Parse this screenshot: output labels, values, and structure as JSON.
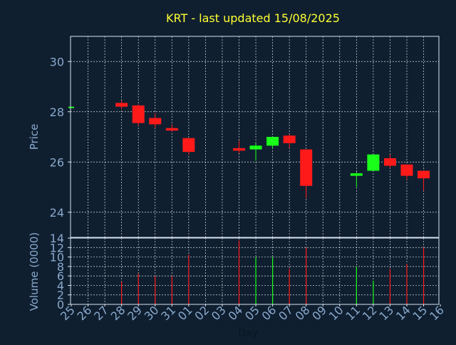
{
  "chart_data": {
    "type": "candlestick",
    "title": "KRT - last updated 15/08/2025",
    "xlabel": "Day",
    "ylabel_price": "Price",
    "ylabel_volume": "Volume (0000)",
    "categories": [
      "25",
      "26",
      "27",
      "28",
      "29",
      "30",
      "31",
      "01",
      "02",
      "03",
      "04",
      "05",
      "06",
      "07",
      "08",
      "09",
      "10",
      "11",
      "12",
      "13",
      "14",
      "15",
      "16"
    ],
    "price_ylim": [
      23.0,
      31.0
    ],
    "price_ticks": [
      24,
      26,
      28,
      30
    ],
    "volume_ylim": [
      0,
      14
    ],
    "volume_ticks": [
      0,
      2,
      4,
      6,
      8,
      10,
      12,
      14
    ],
    "grid": true,
    "candles": [
      {
        "x": "25",
        "open": 28.18,
        "high": 28.2,
        "low": 28.18,
        "close": 28.2
      },
      {
        "x": "28",
        "open": 28.35,
        "high": 28.45,
        "low": 28.1,
        "close": 28.2
      },
      {
        "x": "29",
        "open": 28.25,
        "high": 28.3,
        "low": 27.45,
        "close": 27.55
      },
      {
        "x": "30",
        "open": 27.75,
        "high": 27.95,
        "low": 27.35,
        "close": 27.5
      },
      {
        "x": "31",
        "open": 27.35,
        "high": 27.5,
        "low": 27.2,
        "close": 27.25
      },
      {
        "x": "01",
        "open": 26.95,
        "high": 26.95,
        "low": 26.3,
        "close": 26.4
      },
      {
        "x": "04",
        "open": 26.55,
        "high": 26.85,
        "low": 26.35,
        "close": 26.45
      },
      {
        "x": "05",
        "open": 26.5,
        "high": 26.75,
        "low": 26.05,
        "close": 26.65
      },
      {
        "x": "06",
        "open": 26.65,
        "high": 27.0,
        "low": 26.55,
        "close": 27.0
      },
      {
        "x": "07",
        "open": 27.05,
        "high": 27.1,
        "low": 26.55,
        "close": 26.75
      },
      {
        "x": "08",
        "open": 26.5,
        "high": 26.5,
        "low": 24.55,
        "close": 25.05
      },
      {
        "x": "11",
        "open": 25.45,
        "high": 25.6,
        "low": 25.0,
        "close": 25.55
      },
      {
        "x": "12",
        "open": 25.65,
        "high": 26.3,
        "low": 25.65,
        "close": 26.3
      },
      {
        "x": "13",
        "open": 26.15,
        "high": 26.3,
        "low": 25.75,
        "close": 25.85
      },
      {
        "x": "14",
        "open": 25.9,
        "high": 25.9,
        "low": 25.3,
        "close": 25.45
      },
      {
        "x": "15",
        "open": 25.65,
        "high": 25.65,
        "low": 24.85,
        "close": 25.35
      }
    ],
    "volume": [
      {
        "x": "28",
        "value": 4.8,
        "color": "#ff1a1a"
      },
      {
        "x": "29",
        "value": 6.5,
        "color": "#ff1a1a"
      },
      {
        "x": "30",
        "value": 6.0,
        "color": "#ff1a1a"
      },
      {
        "x": "31",
        "value": 6.0,
        "color": "#ff1a1a"
      },
      {
        "x": "01",
        "value": 10.5,
        "color": "#ff1a1a"
      },
      {
        "x": "04",
        "value": 13.5,
        "color": "#ff1a1a"
      },
      {
        "x": "05",
        "value": 10.0,
        "color": "#1aff1a"
      },
      {
        "x": "06",
        "value": 10.0,
        "color": "#1aff1a"
      },
      {
        "x": "07",
        "value": 7.5,
        "color": "#ff1a1a"
      },
      {
        "x": "08",
        "value": 12.0,
        "color": "#ff1a1a"
      },
      {
        "x": "11",
        "value": 8.0,
        "color": "#1aff1a"
      },
      {
        "x": "12",
        "value": 5.0,
        "color": "#1aff1a"
      },
      {
        "x": "13",
        "value": 7.5,
        "color": "#ff1a1a"
      },
      {
        "x": "14",
        "value": 8.5,
        "color": "#ff1a1a"
      },
      {
        "x": "15",
        "value": 12.0,
        "color": "#ff1a1a"
      }
    ],
    "colors": {
      "background": "#0f1f30",
      "title": "#ffff33",
      "axis_text": "#8aa9cc",
      "axis_line": "#d8e4f0",
      "grid": "#ffffff",
      "up": "#1aff1a",
      "down": "#ff1a1a"
    }
  }
}
